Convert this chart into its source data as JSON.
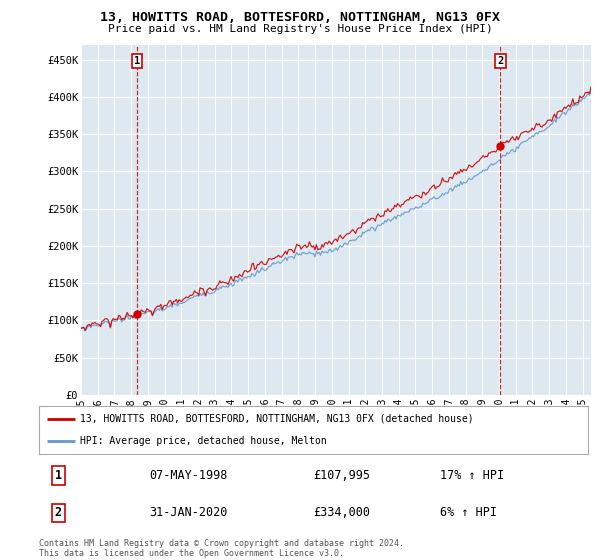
{
  "title": "13, HOWITTS ROAD, BOTTESFORD, NOTTINGHAM, NG13 0FX",
  "subtitle": "Price paid vs. HM Land Registry's House Price Index (HPI)",
  "ylabel_ticks": [
    "£0",
    "£50K",
    "£100K",
    "£150K",
    "£200K",
    "£250K",
    "£300K",
    "£350K",
    "£400K",
    "£450K"
  ],
  "ytick_values": [
    0,
    50000,
    100000,
    150000,
    200000,
    250000,
    300000,
    350000,
    400000,
    450000
  ],
  "ylim": [
    0,
    470000
  ],
  "xlim_start": 1995.0,
  "xlim_end": 2025.5,
  "sale1_x": 1998.35,
  "sale1_y": 107995,
  "sale2_x": 2020.08,
  "sale2_y": 334000,
  "sale1_label": "07-MAY-1998",
  "sale1_price": "£107,995",
  "sale1_hpi": "17% ↑ HPI",
  "sale2_label": "31-JAN-2020",
  "sale2_price": "£334,000",
  "sale2_hpi": "6% ↑ HPI",
  "legend_line1": "13, HOWITTS ROAD, BOTTESFORD, NOTTINGHAM, NG13 0FX (detached house)",
  "legend_line2": "HPI: Average price, detached house, Melton",
  "footer1": "Contains HM Land Registry data © Crown copyright and database right 2024.",
  "footer2": "This data is licensed under the Open Government Licence v3.0.",
  "property_color": "#cc0000",
  "hpi_color": "#6699cc",
  "plot_bg_color": "#dde8f0",
  "background_color": "#ffffff",
  "grid_color": "#ffffff"
}
